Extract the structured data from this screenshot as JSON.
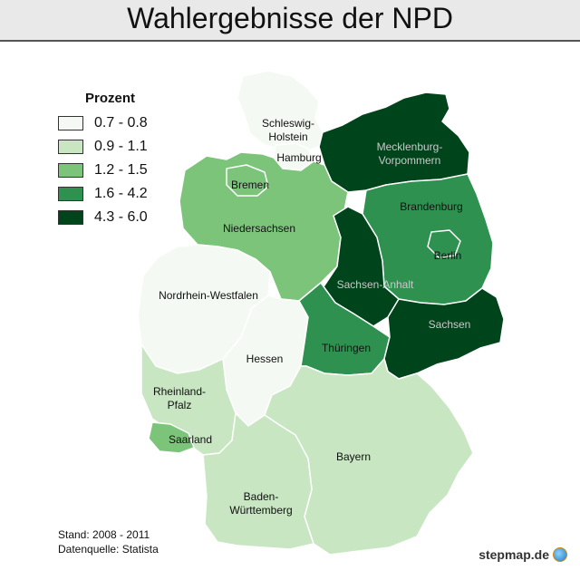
{
  "title": "Wahlergebnisse der NPD",
  "legend": {
    "title": "Prozent",
    "items": [
      {
        "label": "0.7 - 0.8",
        "color": "#f4faf3"
      },
      {
        "label": "0.9 - 1.1",
        "color": "#c8e6c2"
      },
      {
        "label": "1.2 - 1.5",
        "color": "#7dc47b"
      },
      {
        "label": "1.6 - 4.2",
        "color": "#2e9150"
      },
      {
        "label": "4.3 - 6.0",
        "color": "#00441b"
      }
    ]
  },
  "states": {
    "schleswig_holstein": {
      "label_lines": [
        "Schleswig-",
        "Holstein"
      ],
      "class": 0
    },
    "hamburg": {
      "label_lines": [
        "Hamburg"
      ],
      "class": 0
    },
    "mecklenburg_vorpommern": {
      "label_lines": [
        "Mecklenburg-",
        "Vorpommern"
      ],
      "class": 4
    },
    "bremen": {
      "label_lines": [
        "Bremen"
      ],
      "class": 2
    },
    "niedersachsen": {
      "label_lines": [
        "Niedersachsen"
      ],
      "class": 2
    },
    "brandenburg": {
      "label_lines": [
        "Brandenburg"
      ],
      "class": 3
    },
    "berlin": {
      "label_lines": [
        "Berlin"
      ],
      "class": 3
    },
    "sachsen_anhalt": {
      "label_lines": [
        "Sachsen-Anhalt"
      ],
      "class": 4
    },
    "nordrhein_westfalen": {
      "label_lines": [
        "Nordrhein-Westfalen"
      ],
      "class": 0
    },
    "hessen": {
      "label_lines": [
        "Hessen"
      ],
      "class": 0
    },
    "thueringen": {
      "label_lines": [
        "Thüringen"
      ],
      "class": 3
    },
    "sachsen": {
      "label_lines": [
        "Sachsen"
      ],
      "class": 4
    },
    "rheinland_pfalz": {
      "label_lines": [
        "Rheinland-",
        "Pfalz"
      ],
      "class": 1
    },
    "saarland": {
      "label_lines": [
        "Saarland"
      ],
      "class": 2
    },
    "bayern": {
      "label_lines": [
        "Bayern"
      ],
      "class": 1
    },
    "baden_wuerttemberg": {
      "label_lines": [
        "Baden-",
        "Württemberg"
      ],
      "class": 1
    }
  },
  "credits": {
    "line1": "Stand: 2008 - 2011",
    "line2": "Datenquelle: Statista"
  },
  "brand": "stepmap.de"
}
